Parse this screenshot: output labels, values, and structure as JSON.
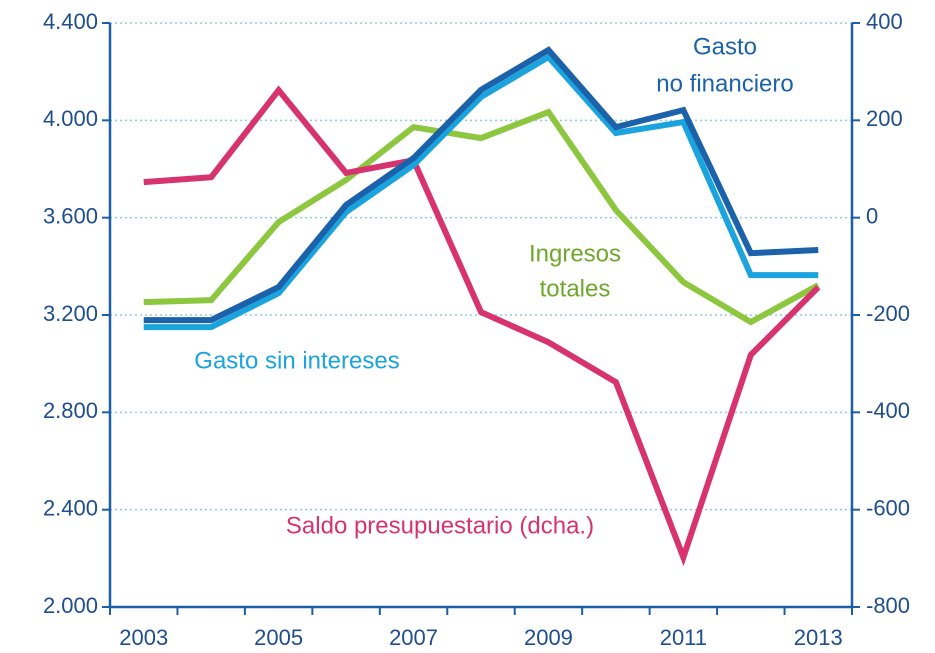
{
  "chart_data": {
    "type": "line",
    "x": [
      2003,
      2004,
      2005,
      2006,
      2007,
      2008,
      2009,
      2010,
      2011,
      2012,
      2013
    ],
    "xlim": [
      2002.5,
      2013.5
    ],
    "xticks": [
      2003,
      2005,
      2007,
      2009,
      2011,
      2013
    ],
    "ylim": [
      2000,
      4400
    ],
    "yticks": [
      {
        "value": 2000,
        "label": "2.000"
      },
      {
        "value": 2400,
        "label": "2.400"
      },
      {
        "value": 2800,
        "label": "2.800"
      },
      {
        "value": 3200,
        "label": "3.200"
      },
      {
        "value": 3600,
        "label": "3.600"
      },
      {
        "value": 4000,
        "label": "4.000"
      },
      {
        "value": 4400,
        "label": "4.400"
      }
    ],
    "y2lim": [
      -800,
      400
    ],
    "y2ticks": [
      -800,
      -600,
      -400,
      -200,
      0,
      200,
      400
    ],
    "grid": true,
    "series": [
      {
        "name": "Ingresos totales",
        "color": "#8dc63f",
        "values": [
          3253,
          3261,
          3582,
          3755,
          3972,
          3927,
          4034,
          3631,
          3335,
          3171,
          3323
        ]
      },
      {
        "name": "Saldo presupuestario (dcha.)",
        "color": "#d6336f",
        "axis": "y2",
        "values": [
          73,
          83,
          262,
          92,
          118,
          -194,
          -256,
          -338,
          -698,
          -282,
          -143
        ]
      },
      {
        "name": "Gasto sin intereses",
        "color": "#1aa3dd",
        "values": [
          3150,
          3150,
          3290,
          3623,
          3816,
          4096,
          4260,
          3948,
          3993,
          3364,
          3364
        ]
      },
      {
        "name": "Gasto no financiero",
        "color": "#1c62ab",
        "values": [
          3179,
          3179,
          3315,
          3652,
          3845,
          4125,
          4289,
          3972,
          4042,
          3454,
          3467
        ]
      }
    ],
    "annotations": [
      [
        "Gasto",
        "no financiero"
      ],
      [
        "Ingresos",
        "totales"
      ]
    ]
  }
}
